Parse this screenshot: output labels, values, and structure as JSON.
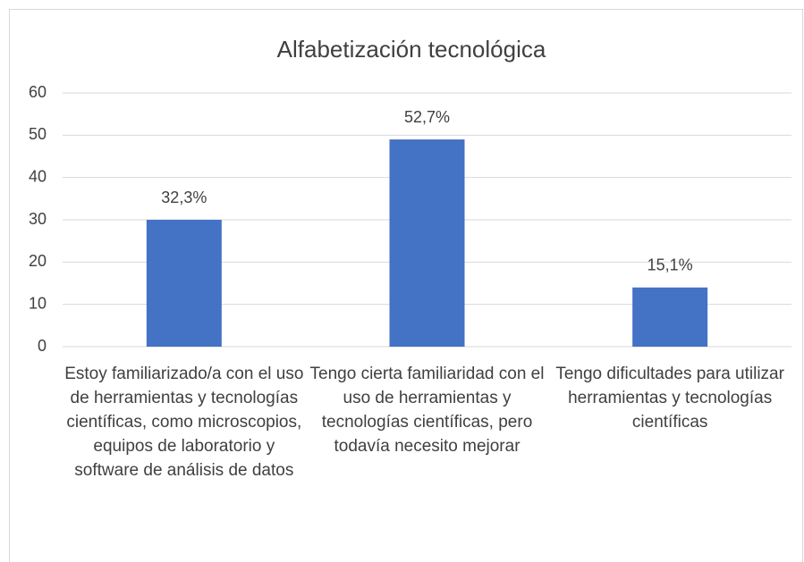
{
  "chart_data": {
    "type": "bar",
    "title": "Alfabetización tecnológica",
    "categories": [
      "Estoy familiarizado/a con el uso de herramientas y tecnologías científicas, como microscopios, equipos de laboratorio y software de análisis de datos",
      "Tengo cierta familiaridad con el uso de herramientas y tecnologías científicas, pero todavía necesito mejorar",
      "Tengo dificultades para utilizar herramientas y tecnologías científicas"
    ],
    "values": [
      30,
      49,
      14
    ],
    "value_labels": [
      "32,3%",
      "52,7%",
      "15,1%"
    ],
    "color": "#4472c4",
    "ylim": [
      0,
      60
    ],
    "yticks": [
      0,
      10,
      20,
      30,
      40,
      50,
      60
    ],
    "grid": true
  }
}
